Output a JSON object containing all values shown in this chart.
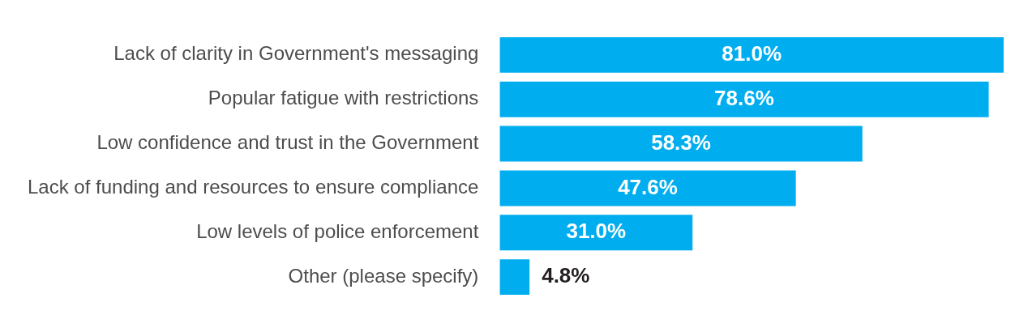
{
  "chart_data": {
    "type": "bar",
    "orientation": "horizontal",
    "categories": [
      "Lack of clarity in Government's messaging",
      "Popular fatigue with restrictions",
      "Low confidence and trust in the Government",
      "Lack of funding and resources to ensure compliance",
      "Low levels of police enforcement",
      "Other (please specify)"
    ],
    "values": [
      81.0,
      78.6,
      58.3,
      47.6,
      31.0,
      4.8
    ],
    "value_labels": [
      "81.0%",
      "78.6%",
      "58.3%",
      "47.6%",
      "31.0%",
      "4.8%"
    ],
    "color": "#00aeef",
    "legend": false
  }
}
